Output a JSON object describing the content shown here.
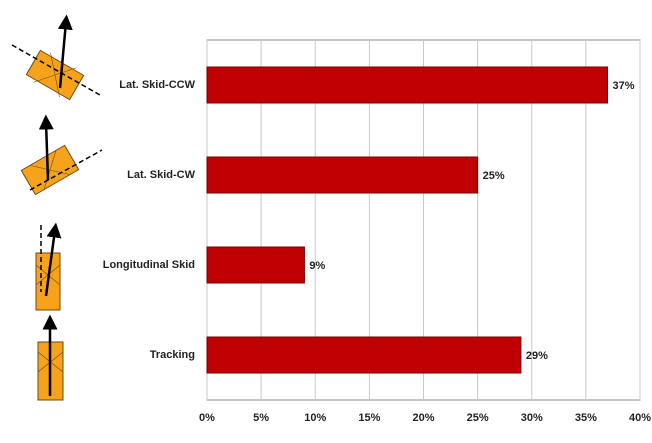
{
  "chart_data": {
    "type": "hbar",
    "categories": [
      "Lat. Skid-CCW",
      "Lat. Skid-CW",
      "Longitudinal Skid",
      "Tracking"
    ],
    "values": [
      37,
      25,
      9,
      29
    ],
    "value_labels": [
      "37%",
      "25%",
      "9%",
      "29%"
    ],
    "color": "#c00000",
    "xlim": [
      0,
      40
    ],
    "xticks": [
      {
        "value": 0,
        "label": "0%"
      },
      {
        "value": 5,
        "label": "5%"
      },
      {
        "value": 10,
        "label": "10%"
      },
      {
        "value": 15,
        "label": "15%"
      },
      {
        "value": 20,
        "label": "20%"
      },
      {
        "value": 25,
        "label": "25%"
      },
      {
        "value": 30,
        "label": "30%"
      },
      {
        "value": 35,
        "label": "35%"
      },
      {
        "value": 40,
        "label": "40%"
      }
    ],
    "grid": true
  }
}
